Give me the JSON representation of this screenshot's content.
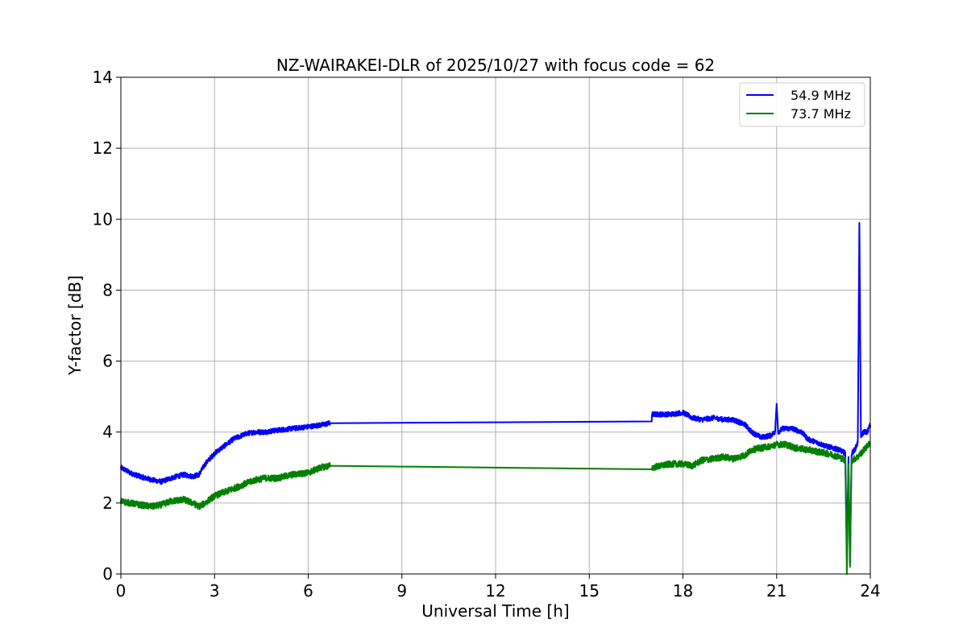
{
  "chart_data": {
    "type": "line",
    "title": "NZ-WAIRAKEI-DLR of 2025/10/27 with focus code = 62",
    "xlabel": "Universal Time [h]",
    "ylabel": "Y-factor [dB]",
    "xlim": [
      0,
      24
    ],
    "ylim": [
      0,
      14
    ],
    "xticks": [
      0,
      3,
      6,
      9,
      12,
      15,
      18,
      21,
      24
    ],
    "yticks": [
      0,
      2,
      4,
      6,
      8,
      10,
      12,
      14
    ],
    "grid": true,
    "legend_position": "top-right",
    "series": [
      {
        "name": "54.9 MHz",
        "color": "#0000ff",
        "noise": 0.07,
        "x": [
          0,
          0.3,
          0.6,
          1.0,
          1.3,
          1.6,
          2.0,
          2.3,
          2.5,
          2.7,
          3.0,
          3.3,
          3.6,
          4.0,
          4.3,
          4.6,
          5.0,
          5.5,
          6.0,
          6.4,
          6.7,
          17.0,
          17.01,
          17.3,
          17.6,
          18.0,
          18.3,
          18.6,
          19.0,
          19.3,
          19.6,
          20.0,
          20.2,
          20.5,
          20.8,
          20.95,
          21.0,
          21.05,
          21.2,
          21.5,
          21.8,
          22.0,
          22.3,
          22.6,
          23.0,
          23.2,
          23.25,
          23.3,
          23.35,
          23.4,
          23.5,
          23.6,
          23.65,
          23.7,
          23.8,
          23.9,
          24.0
        ],
        "y": [
          3.0,
          2.85,
          2.75,
          2.65,
          2.6,
          2.7,
          2.8,
          2.75,
          2.8,
          3.1,
          3.4,
          3.6,
          3.8,
          3.95,
          4.0,
          4.0,
          4.05,
          4.1,
          4.15,
          4.2,
          4.25,
          4.3,
          4.5,
          4.5,
          4.5,
          4.55,
          4.4,
          4.35,
          4.4,
          4.35,
          4.35,
          4.2,
          4.0,
          3.85,
          3.9,
          4.0,
          4.8,
          4.0,
          4.1,
          4.1,
          4.0,
          3.8,
          3.7,
          3.6,
          3.5,
          3.4,
          0.5,
          3.3,
          0.3,
          3.4,
          3.5,
          3.7,
          9.9,
          3.9,
          4.0,
          4.0,
          4.2
        ]
      },
      {
        "name": "73.7 MHz",
        "color": "#008000",
        "noise": 0.09,
        "x": [
          0,
          0.3,
          0.6,
          1.0,
          1.3,
          1.6,
          2.0,
          2.3,
          2.5,
          2.7,
          3.0,
          3.3,
          3.6,
          4.0,
          4.3,
          4.6,
          5.0,
          5.5,
          6.0,
          6.4,
          6.7,
          17.0,
          17.01,
          17.3,
          17.6,
          18.0,
          18.3,
          18.6,
          19.0,
          19.3,
          19.6,
          20.0,
          20.2,
          20.5,
          20.8,
          21.0,
          21.3,
          21.6,
          22.0,
          22.3,
          22.6,
          23.0,
          23.2,
          23.25,
          23.3,
          23.35,
          23.4,
          23.6,
          23.8,
          24.0
        ],
        "y": [
          2.05,
          2.0,
          1.95,
          1.9,
          1.95,
          2.05,
          2.1,
          2.0,
          1.9,
          2.0,
          2.2,
          2.3,
          2.4,
          2.55,
          2.65,
          2.7,
          2.7,
          2.8,
          2.85,
          3.0,
          3.05,
          2.95,
          3.0,
          3.05,
          3.1,
          3.1,
          3.05,
          3.2,
          3.25,
          3.3,
          3.25,
          3.35,
          3.5,
          3.55,
          3.6,
          3.65,
          3.65,
          3.55,
          3.5,
          3.45,
          3.4,
          3.3,
          3.2,
          0.0,
          3.1,
          0.2,
          3.2,
          3.3,
          3.5,
          3.7
        ]
      }
    ]
  }
}
